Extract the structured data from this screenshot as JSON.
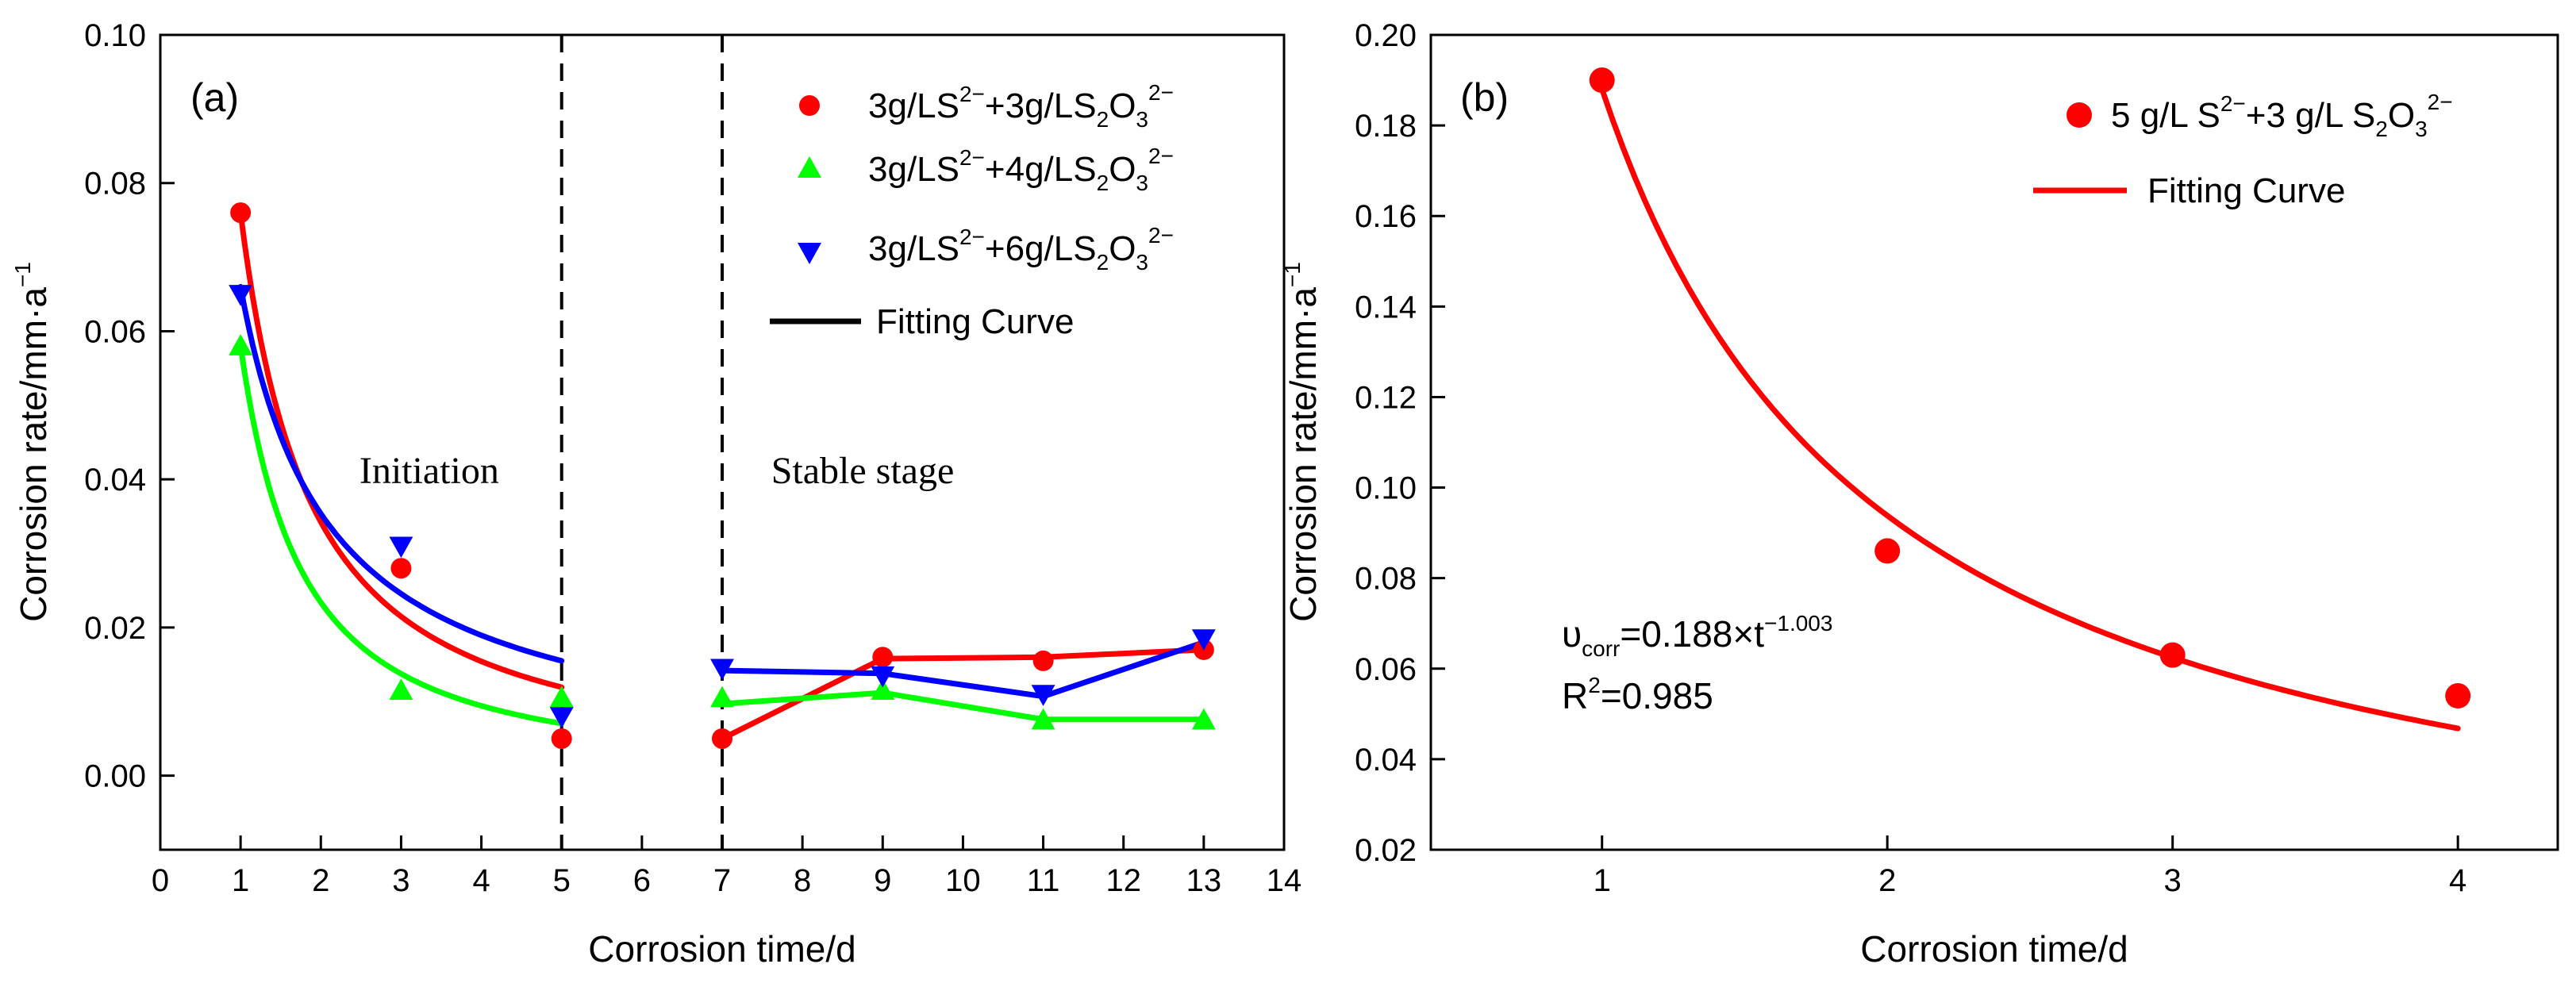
{
  "chart_data": [
    {
      "type": "scatter",
      "panel": "(a)",
      "xlabel": "Corrosion time/d",
      "ylabel_main": "Corrosion rate/mm·a",
      "ylabel_sup": "−1",
      "xlim": [
        0,
        14
      ],
      "ylim": [
        -0.01,
        0.1
      ],
      "x_ticks": [
        0,
        1,
        2,
        3,
        4,
        5,
        6,
        7,
        8,
        9,
        10,
        11,
        12,
        13,
        14
      ],
      "y_ticks": [
        "0.00",
        "0.02",
        "0.04",
        "0.06",
        "0.08",
        "0.10"
      ],
      "y_tick_values": [
        0,
        0.02,
        0.04,
        0.06,
        0.08,
        0.1
      ],
      "dividers": [
        5,
        7
      ],
      "annotations": [
        {
          "text": "Initiation",
          "x": 3.35,
          "y": 0.0395
        },
        {
          "text": "Stable stage",
          "x": 8.75,
          "y": 0.0395
        }
      ],
      "series": [
        {
          "name": "3g/LS²⁻+3g/LS₂O₃²⁻",
          "legend": {
            "a": "3g/LS",
            "b": "2−",
            "c": "+3g/LS",
            "d": "2",
            "e": "O",
            "f": "3",
            "g": "2−"
          },
          "color": "#ff0000",
          "marker": "circle",
          "points": [
            [
              1,
              0.076
            ],
            [
              3,
              0.028
            ],
            [
              5,
              0.005
            ],
            [
              7,
              0.005
            ],
            [
              9,
              0.016
            ],
            [
              11,
              0.0155
            ],
            [
              13,
              0.017
            ]
          ],
          "fit_initiation": {
            "a": 0.076,
            "b": 1.15,
            "from": 1,
            "to": 5
          },
          "stable_line": [
            [
              7,
              0.005
            ],
            [
              9,
              0.0158
            ],
            [
              11,
              0.016
            ],
            [
              13,
              0.017
            ]
          ]
        },
        {
          "name": "3g/LS²⁻+4g/LS₂O₃²⁻",
          "legend": {
            "a": "3g/LS",
            "b": "2−",
            "c": "+4g/LS",
            "d": "2",
            "e": "O",
            "f": "3",
            "g": "2−"
          },
          "color": "#00ff00",
          "marker": "triangle-up",
          "points": [
            [
              1,
              0.058
            ],
            [
              3,
              0.0115
            ],
            [
              5,
              0.0105
            ],
            [
              7,
              0.0105
            ],
            [
              9,
              0.0115
            ],
            [
              11,
              0.0075
            ],
            [
              13,
              0.0075
            ]
          ],
          "fit_initiation": {
            "a": 0.058,
            "b": 1.31,
            "from": 1,
            "to": 5
          },
          "stable_line": [
            [
              7,
              0.0097
            ],
            [
              9,
              0.0112
            ],
            [
              11,
              0.0076
            ],
            [
              13,
              0.0076
            ]
          ]
        },
        {
          "name": "3g/LS²⁻+6g/LS₂O₃²⁻",
          "legend": {
            "a": "3g/LS",
            "b": "2−",
            "c": "+6g/LS",
            "d": "2",
            "e": "O",
            "f": "3",
            "g": "2−"
          },
          "color": "#0000ff",
          "marker": "triangle-down",
          "points": [
            [
              1,
              0.065
            ],
            [
              3,
              0.031
            ],
            [
              5,
              0.008
            ],
            [
              7,
              0.0145
            ],
            [
              9,
              0.0135
            ],
            [
              11,
              0.011
            ],
            [
              13,
              0.0185
            ]
          ],
          "fit_initiation": {
            "a": 0.066,
            "b": 0.9,
            "from": 1,
            "to": 5
          },
          "stable_line": [
            [
              7,
              0.0142
            ],
            [
              9,
              0.0138
            ],
            [
              11,
              0.0107
            ],
            [
              13,
              0.018
            ]
          ]
        }
      ],
      "fit_legend": {
        "label": "Fitting Curve",
        "color": "#000000"
      }
    },
    {
      "type": "scatter",
      "panel": "(b)",
      "xlabel": "Corrosion time/d",
      "ylabel_main": "Corrosion rate/mm·a",
      "ylabel_sup": "−1",
      "xlim": [
        0.4,
        4.35
      ],
      "ylim": [
        0.02,
        0.2
      ],
      "x_ticks": [
        1,
        2,
        3,
        4
      ],
      "y_ticks": [
        "0.02",
        "0.04",
        "0.06",
        "0.08",
        "0.10",
        "0.12",
        "0.14",
        "0.16",
        "0.18",
        "0.20"
      ],
      "y_tick_values": [
        0.02,
        0.04,
        0.06,
        0.08,
        0.1,
        0.12,
        0.14,
        0.16,
        0.18,
        0.2
      ],
      "series": [
        {
          "name": "5 g/L S²⁻+3 g/L S₂O₃²⁻",
          "legend": {
            "a": "5 g/L S",
            "b": "2−",
            "c": "+3 g/L S",
            "d": "2",
            "e": "O",
            "f": "3",
            "g": "2−"
          },
          "color": "#ff0000",
          "marker": "circle",
          "points": [
            [
              1,
              0.19
            ],
            [
              2,
              0.086
            ],
            [
              3,
              0.063
            ],
            [
              4,
              0.054
            ]
          ]
        }
      ],
      "fit": {
        "a": 0.188,
        "b": 1.003,
        "from": 1,
        "to": 4,
        "color": "#ff0000"
      },
      "fit_legend": {
        "label": "Fitting Curve",
        "color": "#ff0000"
      },
      "equation": {
        "symbol": "υ",
        "sub": "corr",
        "mid": "=0.188×t",
        "sup": "−1.003"
      },
      "r2": {
        "pre": "R",
        "sup": "2",
        "post": "=0.985"
      }
    }
  ]
}
